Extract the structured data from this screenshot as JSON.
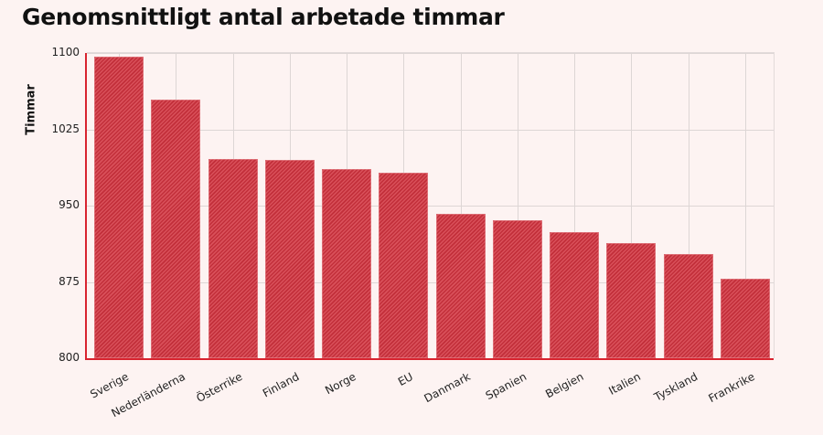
{
  "chart_data": {
    "type": "bar",
    "title": "Genomsnittligt antal arbetade timmar",
    "xlabel": "",
    "ylabel": "Timmar",
    "ylim": [
      800,
      1100
    ],
    "yticks": [
      800,
      875,
      950,
      1025,
      1100
    ],
    "grid": true,
    "categories": [
      "Sverige",
      "Nederländerna",
      "Österrike",
      "Finland",
      "Norge",
      "EU",
      "Danmark",
      "Spanien",
      "Belgien",
      "Italien",
      "Tyskland",
      "Frankrike"
    ],
    "values": [
      1096,
      1054,
      996,
      995,
      986,
      982,
      942,
      936,
      924,
      913,
      902,
      878
    ],
    "colors": {
      "bar": "#c22f3a",
      "bar_stripe": "#d9505a",
      "axis": "#d8232f",
      "background": "#fdf3f2",
      "grid": "#ddd6d5"
    }
  }
}
